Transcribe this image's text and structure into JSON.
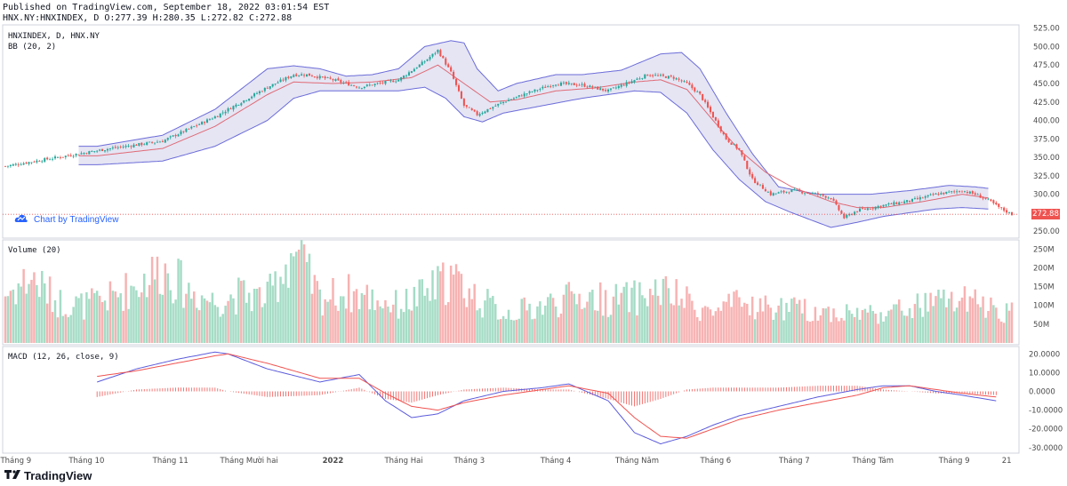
{
  "header": {
    "published": "Published on TradingView.com, September 18, 2022 03:01:54 EST",
    "ohlc": "HNX.NY:HNXINDEX, D O:277.39 H:280.35 L:272.82 C:272.88"
  },
  "price_pane": {
    "title": "HNXINDEX, D, HNX.NY",
    "indicator": "BB (20, 2)",
    "last_price": "272.88",
    "watermark": "Chart by TradingView"
  },
  "volume_pane": {
    "title": "Volume (20)"
  },
  "macd_pane": {
    "title": "MACD (12, 26, close, 9)"
  },
  "brand": {
    "name": "TradingView"
  },
  "colors": {
    "up": "#26a69a",
    "down": "#ef5350",
    "up_volume": "#a5dcc6",
    "down_volume": "#f7b2b2",
    "bb_band": "#6c6cd9",
    "bb_fill": "#dcdcf0",
    "bb_basis": "#e06a75",
    "macd_line": "#5b5bdc",
    "signal_line": "#ef5350",
    "hist": "#ef5350"
  },
  "chart_data": [
    {
      "type": "candlestick",
      "title": "HNXINDEX, D, HNX.NY",
      "y_ticks": [
        "525.00",
        "500.00",
        "475.00",
        "450.00",
        "425.00",
        "400.00",
        "375.00",
        "350.00",
        "325.00",
        "300.00",
        "275.00",
        "250.00"
      ],
      "ylim": [
        243,
        527
      ],
      "x_labels": [
        "Tháng 9",
        "Tháng 10",
        "Tháng 11",
        "Tháng Mười hai",
        "2022",
        "Tháng Hai",
        "Tháng 3",
        "Tháng 4",
        "Tháng Năm",
        "Tháng 6",
        "Tháng 7",
        "Tháng Tám",
        "Tháng 9",
        "21"
      ],
      "close_keypoints": [
        [
          0,
          338
        ],
        [
          20,
          350
        ],
        [
          40,
          362
        ],
        [
          60,
          372
        ],
        [
          80,
          405
        ],
        [
          100,
          445
        ],
        [
          110,
          462
        ],
        [
          115,
          462
        ],
        [
          125,
          455
        ],
        [
          135,
          445
        ],
        [
          150,
          455
        ],
        [
          160,
          480
        ],
        [
          165,
          495
        ],
        [
          170,
          465
        ],
        [
          175,
          420
        ],
        [
          180,
          408
        ],
        [
          190,
          425
        ],
        [
          200,
          438
        ],
        [
          210,
          450
        ],
        [
          220,
          448
        ],
        [
          230,
          440
        ],
        [
          245,
          462
        ],
        [
          255,
          458
        ],
        [
          260,
          450
        ],
        [
          265,
          435
        ],
        [
          270,
          405
        ],
        [
          275,
          375
        ],
        [
          280,
          360
        ],
        [
          285,
          320
        ],
        [
          292,
          300
        ],
        [
          300,
          305
        ],
        [
          310,
          300
        ],
        [
          315,
          295
        ],
        [
          320,
          268
        ],
        [
          325,
          278
        ],
        [
          335,
          285
        ],
        [
          345,
          291
        ],
        [
          355,
          300
        ],
        [
          365,
          305
        ],
        [
          370,
          300
        ],
        [
          375,
          292
        ],
        [
          380,
          280
        ],
        [
          384,
          272.88
        ]
      ],
      "bb_upper_keypoints": [
        [
          35,
          365
        ],
        [
          60,
          380
        ],
        [
          80,
          415
        ],
        [
          100,
          470
        ],
        [
          110,
          474
        ],
        [
          120,
          470
        ],
        [
          130,
          460
        ],
        [
          140,
          462
        ],
        [
          150,
          470
        ],
        [
          160,
          500
        ],
        [
          170,
          508
        ],
        [
          175,
          505
        ],
        [
          180,
          470
        ],
        [
          188,
          440
        ],
        [
          195,
          450
        ],
        [
          210,
          462
        ],
        [
          220,
          462
        ],
        [
          235,
          468
        ],
        [
          250,
          490
        ],
        [
          258,
          492
        ],
        [
          265,
          470
        ],
        [
          275,
          410
        ],
        [
          285,
          355
        ],
        [
          295,
          310
        ],
        [
          310,
          300
        ],
        [
          320,
          300
        ],
        [
          330,
          300
        ],
        [
          345,
          305
        ],
        [
          360,
          312
        ],
        [
          370,
          310
        ],
        [
          375,
          308
        ]
      ],
      "bb_lower_keypoints": [
        [
          35,
          340
        ],
        [
          60,
          345
        ],
        [
          80,
          365
        ],
        [
          100,
          400
        ],
        [
          110,
          430
        ],
        [
          120,
          440
        ],
        [
          135,
          440
        ],
        [
          150,
          440
        ],
        [
          160,
          445
        ],
        [
          168,
          430
        ],
        [
          175,
          405
        ],
        [
          182,
          398
        ],
        [
          190,
          410
        ],
        [
          205,
          420
        ],
        [
          220,
          430
        ],
        [
          240,
          440
        ],
        [
          250,
          438
        ],
        [
          260,
          410
        ],
        [
          270,
          360
        ],
        [
          280,
          320
        ],
        [
          290,
          290
        ],
        [
          300,
          275
        ],
        [
          315,
          255
        ],
        [
          325,
          262
        ],
        [
          335,
          270
        ],
        [
          345,
          275
        ],
        [
          355,
          280
        ],
        [
          365,
          282
        ],
        [
          375,
          280
        ]
      ],
      "bb_basis_keypoints": [
        [
          35,
          352
        ],
        [
          60,
          362
        ],
        [
          80,
          392
        ],
        [
          100,
          435
        ],
        [
          110,
          452
        ],
        [
          125,
          450
        ],
        [
          140,
          452
        ],
        [
          155,
          458
        ],
        [
          165,
          475
        ],
        [
          175,
          450
        ],
        [
          185,
          425
        ],
        [
          195,
          428
        ],
        [
          210,
          440
        ],
        [
          225,
          444
        ],
        [
          240,
          452
        ],
        [
          250,
          455
        ],
        [
          260,
          442
        ],
        [
          270,
          400
        ],
        [
          280,
          360
        ],
        [
          290,
          330
        ],
        [
          300,
          310
        ],
        [
          315,
          290
        ],
        [
          325,
          282
        ],
        [
          335,
          282
        ],
        [
          350,
          290
        ],
        [
          365,
          300
        ],
        [
          375,
          295
        ]
      ]
    },
    {
      "type": "bar",
      "title": "Volume (20)",
      "y_ticks": [
        "250M",
        "200M",
        "150M",
        "100M",
        "50M"
      ],
      "ylim": [
        0,
        265
      ],
      "volume_keypoints_millions": [
        [
          0,
          130
        ],
        [
          10,
          175
        ],
        [
          20,
          110
        ],
        [
          30,
          100
        ],
        [
          40,
          120
        ],
        [
          50,
          155
        ],
        [
          60,
          200
        ],
        [
          70,
          140
        ],
        [
          80,
          110
        ],
        [
          90,
          130
        ],
        [
          100,
          120
        ],
        [
          110,
          250
        ],
        [
          120,
          120
        ],
        [
          130,
          135
        ],
        [
          140,
          120
        ],
        [
          150,
          100
        ],
        [
          160,
          130
        ],
        [
          170,
          175
        ],
        [
          180,
          120
        ],
        [
          190,
          80
        ],
        [
          200,
          90
        ],
        [
          210,
          110
        ],
        [
          220,
          125
        ],
        [
          230,
          115
        ],
        [
          240,
          120
        ],
        [
          250,
          140
        ],
        [
          260,
          110
        ],
        [
          270,
          80
        ],
        [
          280,
          105
        ],
        [
          290,
          95
        ],
        [
          300,
          90
        ],
        [
          310,
          85
        ],
        [
          320,
          80
        ],
        [
          330,
          80
        ],
        [
          340,
          85
        ],
        [
          350,
          100
        ],
        [
          360,
          115
        ],
        [
          370,
          105
        ],
        [
          380,
          90
        ],
        [
          384,
          80
        ]
      ]
    },
    {
      "type": "line",
      "title": "MACD (12, 26, close, 9)",
      "y_ticks": [
        "20.0000",
        "10.0000",
        "0.0000",
        "-10.0000",
        "-20.0000",
        "-30.0000"
      ],
      "ylim": [
        -32,
        23
      ],
      "series": [
        {
          "name": "MACD",
          "keypoints": [
            [
              35,
              5
            ],
            [
              50,
              12
            ],
            [
              65,
              17
            ],
            [
              80,
              21
            ],
            [
              85,
              20
            ],
            [
              100,
              12
            ],
            [
              120,
              5
            ],
            [
              135,
              9
            ],
            [
              145,
              -5
            ],
            [
              155,
              -14
            ],
            [
              165,
              -12
            ],
            [
              175,
              -5
            ],
            [
              190,
              0
            ],
            [
              205,
              2
            ],
            [
              215,
              4
            ],
            [
              230,
              -5
            ],
            [
              240,
              -22
            ],
            [
              250,
              -28
            ],
            [
              260,
              -24
            ],
            [
              270,
              -18
            ],
            [
              280,
              -13
            ],
            [
              295,
              -8
            ],
            [
              310,
              -3
            ],
            [
              325,
              1
            ],
            [
              335,
              3
            ],
            [
              345,
              3
            ],
            [
              355,
              0
            ],
            [
              365,
              -2
            ],
            [
              378,
              -5
            ]
          ]
        },
        {
          "name": "Signal",
          "keypoints": [
            [
              35,
              8
            ],
            [
              50,
              11
            ],
            [
              65,
              15
            ],
            [
              80,
              19
            ],
            [
              85,
              20
            ],
            [
              100,
              15
            ],
            [
              120,
              7
            ],
            [
              135,
              7
            ],
            [
              145,
              -1
            ],
            [
              155,
              -8
            ],
            [
              165,
              -10
            ],
            [
              175,
              -6
            ],
            [
              190,
              -2
            ],
            [
              205,
              1
            ],
            [
              215,
              3
            ],
            [
              230,
              -1
            ],
            [
              240,
              -14
            ],
            [
              250,
              -24
            ],
            [
              260,
              -25
            ],
            [
              270,
              -20
            ],
            [
              280,
              -15
            ],
            [
              295,
              -10
            ],
            [
              310,
              -6
            ],
            [
              325,
              -2
            ],
            [
              335,
              2
            ],
            [
              345,
              3
            ],
            [
              355,
              1
            ],
            [
              365,
              -1
            ],
            [
              378,
              -3
            ]
          ]
        }
      ]
    }
  ]
}
